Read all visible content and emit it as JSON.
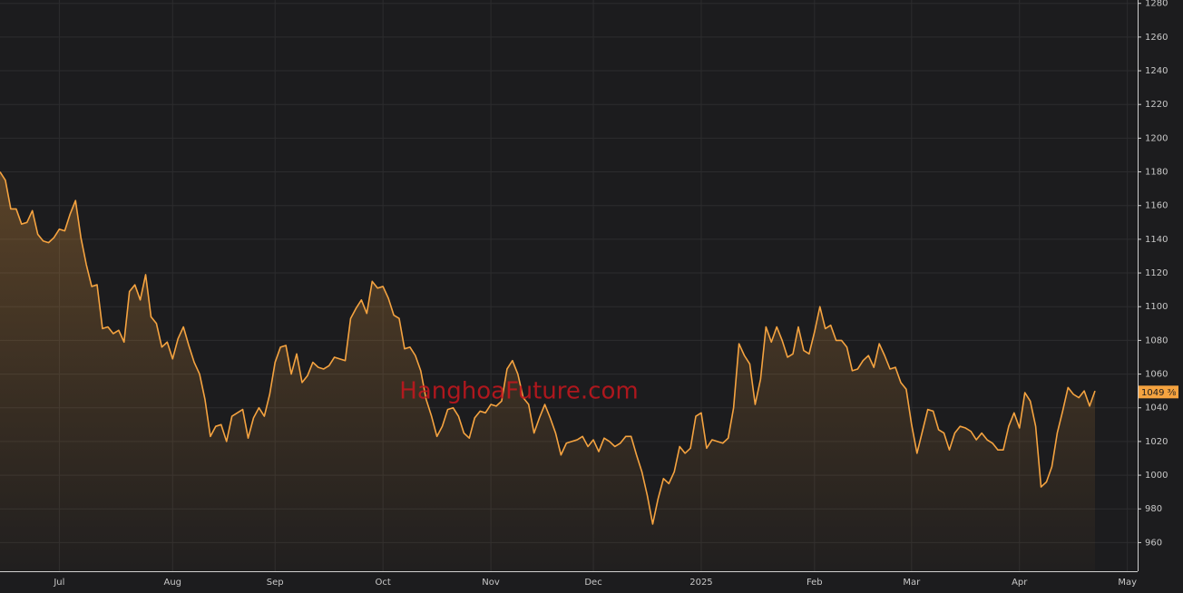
{
  "chart_data": {
    "type": "line",
    "watermark": "HanghoaFuture.com",
    "categories": [
      null,
      null,
      null,
      null,
      null,
      null,
      null,
      null,
      null,
      null,
      null,
      "Jul",
      null,
      null,
      null,
      null,
      null,
      null,
      null,
      null,
      null,
      null,
      null,
      null,
      null,
      null,
      null,
      null,
      null,
      null,
      null,
      null,
      "Aug",
      null,
      null,
      null,
      null,
      null,
      null,
      null,
      null,
      null,
      null,
      null,
      null,
      null,
      null,
      null,
      null,
      null,
      null,
      "Sep",
      null,
      null,
      null,
      null,
      null,
      null,
      null,
      null,
      null,
      null,
      null,
      null,
      null,
      null,
      null,
      null,
      null,
      null,
      null,
      "Oct",
      null,
      null,
      null,
      null,
      null,
      null,
      null,
      null,
      null,
      null,
      null,
      null,
      null,
      null,
      null,
      null,
      null,
      null,
      null,
      "Nov",
      null,
      null,
      null,
      null,
      null,
      null,
      null,
      null,
      null,
      null,
      null,
      null,
      null,
      null,
      null,
      null,
      null,
      null,
      "Dec",
      null,
      null,
      null,
      null,
      null,
      null,
      null,
      null,
      null,
      null,
      null,
      null,
      null,
      null,
      null,
      null,
      null,
      null,
      null,
      "2025",
      null,
      null,
      null,
      null,
      null,
      null,
      null,
      null,
      null,
      null,
      null,
      null,
      null,
      null,
      null,
      null,
      null,
      null,
      null,
      null,
      "Feb",
      null,
      null,
      null,
      null,
      null,
      null,
      null,
      null,
      null,
      null,
      null,
      null,
      null,
      null,
      null,
      null,
      null,
      "Mar",
      null,
      null,
      null,
      null,
      null,
      null,
      null,
      null,
      null,
      null,
      null,
      null,
      null,
      null,
      null,
      null,
      null,
      null,
      null,
      "Apr",
      null,
      null,
      null,
      null,
      null,
      null,
      null,
      null,
      null,
      null,
      null,
      null,
      null,
      null,
      null,
      null,
      null,
      null,
      null,
      "May"
    ],
    "values": [
      1180,
      1175,
      1158,
      1158,
      1149,
      1150,
      1157,
      1143,
      1139,
      1138,
      1141,
      1146,
      1145,
      1155,
      1163,
      1141,
      1125,
      1112,
      1113,
      1087,
      1088,
      1084,
      1086,
      1079,
      1109,
      1113,
      1104,
      1119,
      1094,
      1090,
      1076,
      1079,
      1069,
      1081,
      1088,
      1077,
      1067,
      1060,
      1045,
      1023,
      1029,
      1030,
      1020,
      1035,
      1037,
      1039,
      1022,
      1034,
      1040,
      1035,
      1048,
      1067,
      1076,
      1077,
      1060,
      1072,
      1055,
      1059,
      1067,
      1064,
      1063,
      1065,
      1070,
      1069,
      1068,
      1093,
      1099,
      1104,
      1096,
      1115,
      1111,
      1112,
      1105,
      1095,
      1093,
      1075,
      1076,
      1071,
      1062,
      1045,
      1035,
      1023,
      1029,
      1039,
      1040,
      1035,
      1025,
      1022,
      1034,
      1038,
      1037,
      1042,
      1041,
      1044,
      1063,
      1068,
      1060,
      1046,
      1042,
      1025,
      1034,
      1042,
      1034,
      1025,
      1012,
      1019,
      1020,
      1021,
      1023,
      1017,
      1021,
      1014,
      1022,
      1020,
      1017,
      1019,
      1023,
      1023,
      1012,
      1002,
      988,
      971,
      986,
      998,
      995,
      1002,
      1017,
      1013,
      1016,
      1035,
      1037,
      1016,
      1021,
      1020,
      1019,
      1022,
      1040,
      1078,
      1071,
      1066,
      1042,
      1057,
      1088,
      1079,
      1088,
      1080,
      1070,
      1072,
      1088,
      1074,
      1072,
      1085,
      1100,
      1087,
      1089,
      1080,
      1080,
      1076,
      1062,
      1063,
      1068,
      1071,
      1064,
      1078,
      1071,
      1063,
      1064,
      1055,
      1051,
      1030,
      1013,
      1026,
      1039,
      1038,
      1027,
      1025,
      1015,
      1025,
      1029,
      1028,
      1026,
      1021,
      1025,
      1021,
      1019,
      1015,
      1015,
      1029,
      1037,
      1028,
      1049,
      1044,
      1029,
      993,
      996,
      1005,
      1025,
      1038,
      1052,
      1048,
      1046,
      1050,
      1041,
      1050,
      null,
      null,
      null,
      null,
      null,
      null
    ],
    "color": "#f5a340",
    "ylim": [
      943,
      1282
    ],
    "yticks": [
      960,
      980,
      1000,
      1020,
      1040,
      1060,
      1080,
      1100,
      1120,
      1140,
      1160,
      1180,
      1200,
      1220,
      1240,
      1260,
      1280
    ],
    "grid": true,
    "current_price": {
      "value": 1049.375,
      "label": "1049 ⅜"
    }
  }
}
